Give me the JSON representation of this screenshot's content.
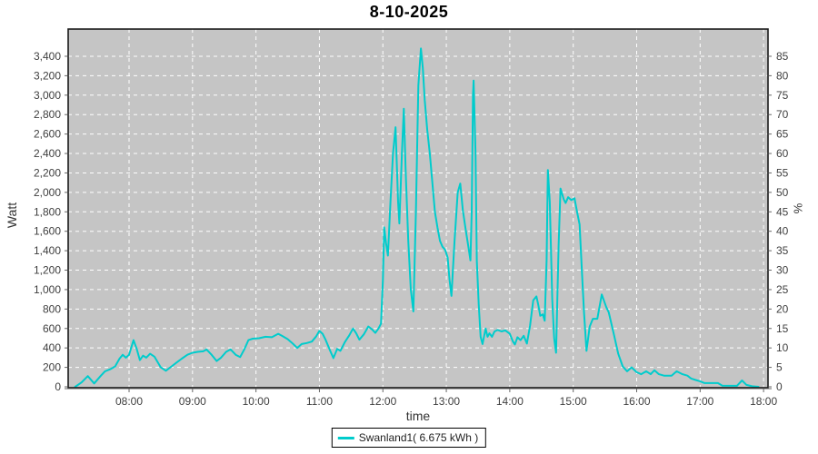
{
  "title": "8-10-2025",
  "axes": {
    "left_label": "Watt",
    "right_label": "%",
    "x_label": "time"
  },
  "legend": {
    "label": "Swanland1( 6.675 kWh )",
    "swatch_color": "#00CCCC"
  },
  "colors": {
    "series": "#00CCCC",
    "plot_background": "#C5C5C5",
    "grid": "#FFFFFF",
    "plot_border": "#1a1a1a",
    "tick_text": "#3F3F3F",
    "tick_mark": "#666666"
  },
  "chart_data": {
    "type": "line",
    "title": "8-10-2025",
    "xlabel": "time",
    "ylabel_left": "Watt",
    "ylabel_right": "%",
    "grid": true,
    "legend_position": "bottom",
    "xlim": [
      7.04,
      18.07
    ],
    "ylim_watt": [
      0,
      3680
    ],
    "ylim_pct": [
      0,
      92
    ],
    "x_ticks": [
      8,
      9,
      10,
      11,
      12,
      13,
      14,
      15,
      16,
      17,
      18
    ],
    "x_tick_labels": [
      "08:00",
      "09:00",
      "10:00",
      "11:00",
      "12:00",
      "13:00",
      "14:00",
      "15:00",
      "16:00",
      "17:00",
      "18:00"
    ],
    "y_ticks_watt": [
      0,
      200,
      400,
      600,
      800,
      1000,
      1200,
      1400,
      1600,
      1800,
      2000,
      2200,
      2400,
      2600,
      2800,
      3000,
      3200,
      3400
    ],
    "y_tick_labels_watt": [
      "0",
      "200",
      "400",
      "600",
      "800",
      "1,000",
      "1,200",
      "1,400",
      "1,600",
      "1,800",
      "2,000",
      "2,200",
      "2,400",
      "2,600",
      "2,800",
      "3,000",
      "3,200",
      "3,400"
    ],
    "y_ticks_pct": [
      0,
      5,
      10,
      15,
      20,
      25,
      30,
      35,
      40,
      45,
      50,
      55,
      60,
      65,
      70,
      75,
      80,
      85
    ],
    "series": [
      {
        "name": "Swanland1( 6.675 kWh )",
        "color": "#00CCCC",
        "energy_kwh": 6.675,
        "points": [
          [
            7.15,
            0
          ],
          [
            7.25,
            45
          ],
          [
            7.35,
            110
          ],
          [
            7.45,
            35
          ],
          [
            7.55,
            110
          ],
          [
            7.62,
            160
          ],
          [
            7.7,
            180
          ],
          [
            7.78,
            210
          ],
          [
            7.85,
            290
          ],
          [
            7.9,
            330
          ],
          [
            7.95,
            300
          ],
          [
            8.0,
            330
          ],
          [
            8.07,
            480
          ],
          [
            8.12,
            390
          ],
          [
            8.17,
            275
          ],
          [
            8.22,
            320
          ],
          [
            8.27,
            300
          ],
          [
            8.33,
            340
          ],
          [
            8.4,
            310
          ],
          [
            8.5,
            200
          ],
          [
            8.58,
            165
          ],
          [
            8.67,
            210
          ],
          [
            8.75,
            250
          ],
          [
            8.83,
            290
          ],
          [
            8.92,
            330
          ],
          [
            9.0,
            350
          ],
          [
            9.08,
            360
          ],
          [
            9.17,
            365
          ],
          [
            9.22,
            385
          ],
          [
            9.3,
            330
          ],
          [
            9.38,
            265
          ],
          [
            9.45,
            300
          ],
          [
            9.53,
            360
          ],
          [
            9.6,
            385
          ],
          [
            9.68,
            330
          ],
          [
            9.75,
            305
          ],
          [
            9.82,
            390
          ],
          [
            9.88,
            480
          ],
          [
            9.95,
            495
          ],
          [
            10.05,
            500
          ],
          [
            10.15,
            515
          ],
          [
            10.25,
            510
          ],
          [
            10.35,
            545
          ],
          [
            10.42,
            520
          ],
          [
            10.5,
            490
          ],
          [
            10.58,
            445
          ],
          [
            10.65,
            400
          ],
          [
            10.72,
            440
          ],
          [
            10.8,
            450
          ],
          [
            10.88,
            465
          ],
          [
            10.95,
            520
          ],
          [
            11.0,
            575
          ],
          [
            11.05,
            545
          ],
          [
            11.1,
            480
          ],
          [
            11.17,
            370
          ],
          [
            11.22,
            295
          ],
          [
            11.28,
            390
          ],
          [
            11.33,
            370
          ],
          [
            11.4,
            460
          ],
          [
            11.47,
            530
          ],
          [
            11.53,
            600
          ],
          [
            11.58,
            550
          ],
          [
            11.63,
            485
          ],
          [
            11.7,
            540
          ],
          [
            11.77,
            620
          ],
          [
            11.83,
            590
          ],
          [
            11.88,
            555
          ],
          [
            11.93,
            600
          ],
          [
            11.97,
            650
          ],
          [
            12.0,
            1100
          ],
          [
            12.02,
            1640
          ],
          [
            12.05,
            1480
          ],
          [
            12.08,
            1350
          ],
          [
            12.12,
            1900
          ],
          [
            12.16,
            2400
          ],
          [
            12.2,
            2670
          ],
          [
            12.24,
            1900
          ],
          [
            12.26,
            1680
          ],
          [
            12.3,
            2400
          ],
          [
            12.33,
            2860
          ],
          [
            12.36,
            2200
          ],
          [
            12.4,
            1500
          ],
          [
            12.44,
            1000
          ],
          [
            12.48,
            775
          ],
          [
            12.52,
            1800
          ],
          [
            12.56,
            3100
          ],
          [
            12.6,
            3480
          ],
          [
            12.63,
            3280
          ],
          [
            12.66,
            2950
          ],
          [
            12.7,
            2640
          ],
          [
            12.74,
            2400
          ],
          [
            12.78,
            2100
          ],
          [
            12.82,
            1800
          ],
          [
            12.86,
            1640
          ],
          [
            12.9,
            1500
          ],
          [
            12.94,
            1440
          ],
          [
            12.98,
            1410
          ],
          [
            13.02,
            1330
          ],
          [
            13.05,
            1100
          ],
          [
            13.08,
            935
          ],
          [
            13.13,
            1500
          ],
          [
            13.18,
            2000
          ],
          [
            13.22,
            2090
          ],
          [
            13.26,
            1820
          ],
          [
            13.3,
            1640
          ],
          [
            13.35,
            1430
          ],
          [
            13.38,
            1300
          ],
          [
            13.4,
            1800
          ],
          [
            13.42,
            3000
          ],
          [
            13.43,
            3150
          ],
          [
            13.46,
            2400
          ],
          [
            13.48,
            1300
          ],
          [
            13.51,
            850
          ],
          [
            13.54,
            515
          ],
          [
            13.57,
            440
          ],
          [
            13.62,
            600
          ],
          [
            13.65,
            515
          ],
          [
            13.68,
            550
          ],
          [
            13.72,
            515
          ],
          [
            13.76,
            570
          ],
          [
            13.81,
            585
          ],
          [
            13.87,
            570
          ],
          [
            13.93,
            580
          ],
          [
            14.0,
            545
          ],
          [
            14.05,
            465
          ],
          [
            14.08,
            435
          ],
          [
            14.12,
            510
          ],
          [
            14.17,
            480
          ],
          [
            14.22,
            525
          ],
          [
            14.27,
            445
          ],
          [
            14.32,
            630
          ],
          [
            14.37,
            890
          ],
          [
            14.42,
            930
          ],
          [
            14.45,
            840
          ],
          [
            14.48,
            730
          ],
          [
            14.52,
            745
          ],
          [
            14.55,
            680
          ],
          [
            14.58,
            1300
          ],
          [
            14.6,
            2230
          ],
          [
            14.63,
            1900
          ],
          [
            14.67,
            900
          ],
          [
            14.7,
            500
          ],
          [
            14.73,
            350
          ],
          [
            14.77,
            1450
          ],
          [
            14.8,
            2040
          ],
          [
            14.85,
            1930
          ],
          [
            14.88,
            1890
          ],
          [
            14.92,
            1950
          ],
          [
            14.97,
            1920
          ],
          [
            15.02,
            1940
          ],
          [
            15.06,
            1800
          ],
          [
            15.1,
            1670
          ],
          [
            15.14,
            1140
          ],
          [
            15.17,
            760
          ],
          [
            15.21,
            370
          ],
          [
            15.26,
            620
          ],
          [
            15.31,
            700
          ],
          [
            15.38,
            700
          ],
          [
            15.45,
            950
          ],
          [
            15.52,
            820
          ],
          [
            15.56,
            765
          ],
          [
            15.64,
            540
          ],
          [
            15.71,
            340
          ],
          [
            15.78,
            210
          ],
          [
            15.85,
            160
          ],
          [
            15.92,
            200
          ],
          [
            16.0,
            150
          ],
          [
            16.07,
            130
          ],
          [
            16.15,
            160
          ],
          [
            16.22,
            130
          ],
          [
            16.28,
            170
          ],
          [
            16.35,
            130
          ],
          [
            16.43,
            115
          ],
          [
            16.55,
            115
          ],
          [
            16.63,
            160
          ],
          [
            16.72,
            130
          ],
          [
            16.8,
            115
          ],
          [
            16.86,
            85
          ],
          [
            16.93,
            70
          ],
          [
            17.0,
            57
          ],
          [
            17.07,
            38
          ],
          [
            17.28,
            38
          ],
          [
            17.35,
            12
          ],
          [
            17.58,
            10
          ],
          [
            17.66,
            65
          ],
          [
            17.73,
            20
          ],
          [
            17.82,
            6
          ],
          [
            17.92,
            0
          ]
        ]
      }
    ]
  }
}
